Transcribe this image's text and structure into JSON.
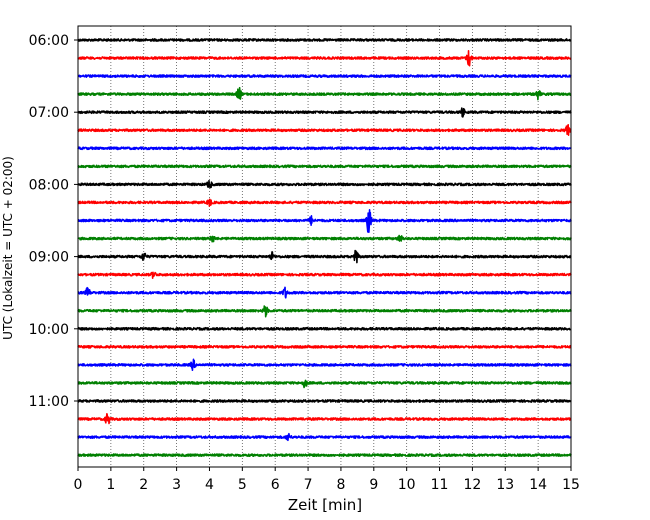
{
  "chart_data": {
    "type": "line",
    "title": "",
    "xlabel": "Zeit  [min]",
    "ylabel": "UTC (Lokalzeit = UTC + 02:00)",
    "xlim": [
      0,
      15
    ],
    "x_ticks": [
      0,
      1,
      2,
      3,
      4,
      5,
      6,
      7,
      8,
      9,
      10,
      11,
      12,
      13,
      14,
      15
    ],
    "x_grid": "dotted",
    "y_ticks": [
      "06:00",
      "07:00",
      "08:00",
      "09:00",
      "10:00",
      "11:00"
    ],
    "trace_start": "06:00",
    "trace_interval_min": 15,
    "trace_colors": [
      "#000000",
      "#ff0000",
      "#0000ff",
      "#008000"
    ],
    "traces": [
      {
        "start": "06:00",
        "color": "#000000",
        "events": []
      },
      {
        "start": "06:15",
        "color": "#ff0000",
        "events": [
          {
            "t": 11.9,
            "amp": 2.2
          }
        ]
      },
      {
        "start": "06:30",
        "color": "#0000ff",
        "events": []
      },
      {
        "start": "06:45",
        "color": "#008000",
        "events": [
          {
            "t": 4.9,
            "amp": 1.6
          },
          {
            "t": 14.0,
            "amp": 1.2
          }
        ]
      },
      {
        "start": "07:00",
        "color": "#000000",
        "events": [
          {
            "t": 11.7,
            "amp": 1.0
          }
        ]
      },
      {
        "start": "07:15",
        "color": "#ff0000",
        "events": [
          {
            "t": 14.9,
            "amp": 1.2
          }
        ]
      },
      {
        "start": "07:30",
        "color": "#0000ff",
        "events": []
      },
      {
        "start": "07:45",
        "color": "#008000",
        "events": []
      },
      {
        "start": "08:00",
        "color": "#000000",
        "events": [
          {
            "t": 4.0,
            "amp": 1.0
          }
        ]
      },
      {
        "start": "08:15",
        "color": "#ff0000",
        "events": [
          {
            "t": 4.0,
            "amp": 0.8
          }
        ]
      },
      {
        "start": "08:30",
        "color": "#0000ff",
        "events": [
          {
            "t": 7.1,
            "amp": 1.0
          },
          {
            "t": 8.85,
            "amp": 3.5
          }
        ]
      },
      {
        "start": "08:45",
        "color": "#008000",
        "events": [
          {
            "t": 4.1,
            "amp": 0.8
          },
          {
            "t": 9.8,
            "amp": 0.8
          }
        ]
      },
      {
        "start": "09:00",
        "color": "#000000",
        "events": [
          {
            "t": 2.0,
            "amp": 1.0
          },
          {
            "t": 5.9,
            "amp": 1.0
          },
          {
            "t": 8.45,
            "amp": 2.2
          }
        ]
      },
      {
        "start": "09:15",
        "color": "#ff0000",
        "events": [
          {
            "t": 2.3,
            "amp": 0.8
          }
        ]
      },
      {
        "start": "09:30",
        "color": "#0000ff",
        "events": [
          {
            "t": 0.3,
            "amp": 1.2
          },
          {
            "t": 6.3,
            "amp": 1.3
          }
        ]
      },
      {
        "start": "09:45",
        "color": "#008000",
        "events": [
          {
            "t": 5.7,
            "amp": 1.4
          }
        ]
      },
      {
        "start": "10:00",
        "color": "#000000",
        "events": []
      },
      {
        "start": "10:15",
        "color": "#ff0000",
        "events": []
      },
      {
        "start": "10:30",
        "color": "#0000ff",
        "events": [
          {
            "t": 3.5,
            "amp": 1.2
          }
        ]
      },
      {
        "start": "10:45",
        "color": "#008000",
        "events": [
          {
            "t": 6.9,
            "amp": 1.0
          }
        ]
      },
      {
        "start": "11:00",
        "color": "#000000",
        "events": []
      },
      {
        "start": "11:15",
        "color": "#ff0000",
        "events": [
          {
            "t": 0.9,
            "amp": 1.6
          }
        ]
      },
      {
        "start": "11:30",
        "color": "#0000ff",
        "events": [
          {
            "t": 6.4,
            "amp": 0.9
          }
        ]
      },
      {
        "start": "11:45",
        "color": "#008000",
        "events": []
      }
    ]
  }
}
